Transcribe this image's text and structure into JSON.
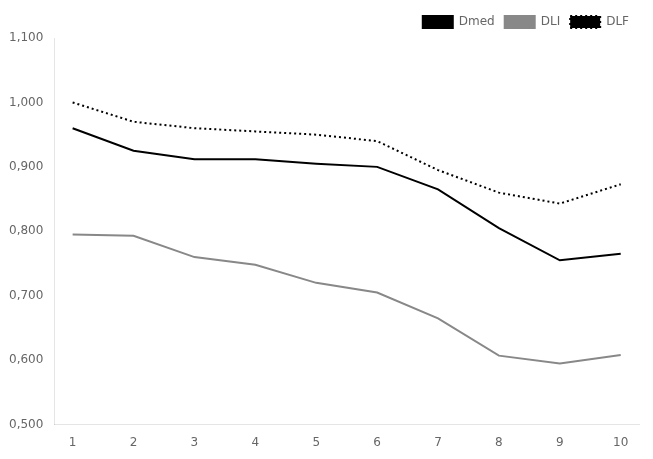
{
  "chart_data": {
    "type": "line",
    "x": [
      1,
      2,
      3,
      4,
      5,
      6,
      7,
      8,
      9,
      10
    ],
    "series": [
      {
        "name": "Dmed",
        "color": "#000000",
        "line_style": "solid",
        "values": [
          0.96,
          0.925,
          0.912,
          0.912,
          0.905,
          0.9,
          0.865,
          0.805,
          0.755,
          0.765
        ]
      },
      {
        "name": "DLI",
        "color": "#888888",
        "line_style": "solid",
        "values": [
          0.795,
          0.793,
          0.76,
          0.748,
          0.72,
          0.705,
          0.665,
          0.607,
          0.595,
          0.608
        ]
      },
      {
        "name": "DLF",
        "color": "#000000",
        "line_style": "dotted",
        "values": [
          1.0,
          0.97,
          0.96,
          0.955,
          0.95,
          0.94,
          0.895,
          0.86,
          0.843,
          0.873
        ]
      }
    ],
    "xlim": [
      0.7,
      10.3
    ],
    "xticks": [
      1,
      2,
      3,
      4,
      5,
      6,
      7,
      8,
      9,
      10
    ],
    "ylim": [
      0.5,
      1.1
    ],
    "yticks": [
      {
        "value": 0.5,
        "label": "0,500"
      },
      {
        "value": 0.6,
        "label": "0,600"
      },
      {
        "value": 0.7,
        "label": "0,700"
      },
      {
        "value": 0.8,
        "label": "0,800"
      },
      {
        "value": 0.9,
        "label": "0,900"
      },
      {
        "value": 1.0,
        "label": "1,000"
      },
      {
        "value": 1.1,
        "label": "1,100"
      }
    ],
    "grid": false,
    "legend": "upper right"
  }
}
